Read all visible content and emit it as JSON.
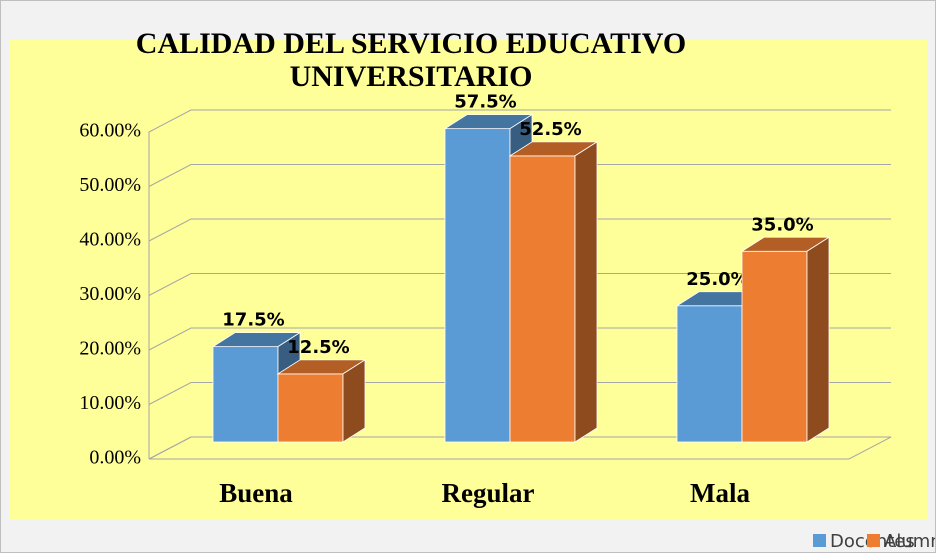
{
  "chart_data": {
    "type": "bar3d",
    "title": "CALIDAD DEL SERVICIO EDUCATIVO UNIVERSITARIO",
    "categories": [
      "Buena",
      "Regular",
      "Mala"
    ],
    "series": [
      {
        "name": "Docentes",
        "color": "#5b9bd5",
        "values": [
          17.5,
          57.5,
          25.0
        ],
        "value_labels": [
          "17.5%",
          "57.5%",
          "25.0%"
        ]
      },
      {
        "name": "Alumnos",
        "color": "#ed7d31",
        "values": [
          12.5,
          52.5,
          35.0
        ],
        "value_labels": [
          "12.5%",
          "52.5%",
          "35.0%"
        ]
      }
    ],
    "ylim": [
      0,
      60
    ],
    "yticks": [
      {
        "value": 0,
        "label": "0.00%"
      },
      {
        "value": 10,
        "label": "10.00%"
      },
      {
        "value": 20,
        "label": "20.00%"
      },
      {
        "value": 30,
        "label": "30.00%"
      },
      {
        "value": 40,
        "label": "40.00%"
      },
      {
        "value": 50,
        "label": "50.00%"
      },
      {
        "value": 60,
        "label": "60.00%"
      }
    ],
    "grid": true,
    "legend": "bottom-right"
  }
}
